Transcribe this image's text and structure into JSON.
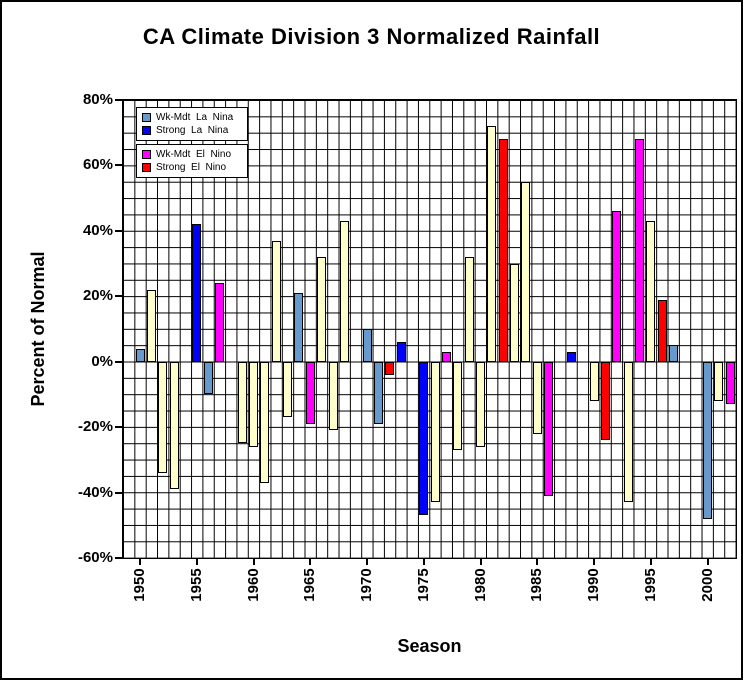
{
  "chart_data": {
    "type": "bar",
    "title": "CA Climate Division 3 Normalized Rainfall",
    "xlabel": "Season",
    "ylabel": "Percent of Normal",
    "ylim": [
      -60,
      80
    ],
    "xlim": [
      1949,
      2003
    ],
    "y_grid_step": 5,
    "x_grid_step": 1,
    "grid": true,
    "legend_position": "top-left",
    "y_ticks": [
      {
        "value": 80,
        "label": "80%"
      },
      {
        "value": 60,
        "label": "60%"
      },
      {
        "value": 40,
        "label": "40%"
      },
      {
        "value": 20,
        "label": "20%"
      },
      {
        "value": 0,
        "label": "0%"
      },
      {
        "value": -20,
        "label": "-20%"
      },
      {
        "value": -40,
        "label": "-40%"
      },
      {
        "value": -60,
        "label": "-60%"
      }
    ],
    "x_ticks": [
      {
        "value": 1950,
        "label": "1950"
      },
      {
        "value": 1955,
        "label": "1955"
      },
      {
        "value": 1960,
        "label": "1960"
      },
      {
        "value": 1965,
        "label": "1965"
      },
      {
        "value": 1970,
        "label": "1970"
      },
      {
        "value": 1975,
        "label": "1975"
      },
      {
        "value": 1980,
        "label": "1980"
      },
      {
        "value": 1985,
        "label": "1985"
      },
      {
        "value": 1990,
        "label": "1990"
      },
      {
        "value": 1995,
        "label": "1995"
      },
      {
        "value": 2000,
        "label": "2000"
      }
    ],
    "colors": {
      "neutral": "#FFFFCC",
      "wk_lanina": "#6699CC",
      "strong_lanina": "#0000FF",
      "wk_elnino": "#FF00FF",
      "strong_elnino": "#FF0000",
      "grid": "#000000",
      "bar_border": "#000000"
    },
    "legend": [
      [
        {
          "label": "Wk-Mdt  La  Nina",
          "type": "wk_lanina"
        },
        {
          "label": "Strong  La  Nina",
          "type": "strong_lanina"
        }
      ],
      [
        {
          "label": "Wk-Mdt  El  Nino",
          "type": "wk_elnino"
        },
        {
          "label": "Strong  El  Nino",
          "type": "strong_elnino"
        }
      ]
    ],
    "bars": [
      {
        "year": 1950,
        "value": 4,
        "type": "wk_lanina"
      },
      {
        "year": 1951,
        "value": 22,
        "type": "neutral"
      },
      {
        "year": 1952,
        "value": -34,
        "type": "neutral"
      },
      {
        "year": 1953,
        "value": -39,
        "type": "neutral"
      },
      {
        "year": 1955,
        "value": 42,
        "type": "strong_lanina"
      },
      {
        "year": 1956,
        "value": -10,
        "type": "wk_lanina"
      },
      {
        "year": 1957,
        "value": 24,
        "type": "wk_elnino"
      },
      {
        "year": 1959,
        "value": -25,
        "type": "neutral"
      },
      {
        "year": 1960,
        "value": -26,
        "type": "neutral"
      },
      {
        "year": 1961,
        "value": -37,
        "type": "neutral"
      },
      {
        "year": 1962,
        "value": 37,
        "type": "neutral"
      },
      {
        "year": 1963,
        "value": -17,
        "type": "neutral"
      },
      {
        "year": 1964,
        "value": 21,
        "type": "wk_lanina"
      },
      {
        "year": 1965,
        "value": -19,
        "type": "wk_elnino"
      },
      {
        "year": 1966,
        "value": 32,
        "type": "neutral"
      },
      {
        "year": 1967,
        "value": -21,
        "type": "neutral"
      },
      {
        "year": 1968,
        "value": 43,
        "type": "neutral"
      },
      {
        "year": 1970,
        "value": 10,
        "type": "wk_lanina"
      },
      {
        "year": 1971,
        "value": -19,
        "type": "wk_lanina"
      },
      {
        "year": 1972,
        "value": -4,
        "type": "strong_elnino"
      },
      {
        "year": 1973,
        "value": 6,
        "type": "strong_lanina"
      },
      {
        "year": 1975,
        "value": -47,
        "type": "strong_lanina"
      },
      {
        "year": 1976,
        "value": -43,
        "type": "neutral"
      },
      {
        "year": 1977,
        "value": 3,
        "type": "wk_elnino"
      },
      {
        "year": 1978,
        "value": -27,
        "type": "neutral"
      },
      {
        "year": 1979,
        "value": 32,
        "type": "neutral"
      },
      {
        "year": 1980,
        "value": -26,
        "type": "neutral"
      },
      {
        "year": 1981,
        "value": 72,
        "type": "neutral"
      },
      {
        "year": 1982,
        "value": 68,
        "type": "strong_elnino"
      },
      {
        "year": 1983,
        "value": 30,
        "type": "neutral"
      },
      {
        "year": 1984,
        "value": 55,
        "type": "neutral"
      },
      {
        "year": 1985,
        "value": -22,
        "type": "neutral"
      },
      {
        "year": 1986,
        "value": -41,
        "type": "wk_elnino"
      },
      {
        "year": 1988,
        "value": 3,
        "type": "strong_lanina"
      },
      {
        "year": 1990,
        "value": -12,
        "type": "neutral"
      },
      {
        "year": 1991,
        "value": -24,
        "type": "strong_elnino"
      },
      {
        "year": 1992,
        "value": 46,
        "type": "wk_elnino"
      },
      {
        "year": 1993,
        "value": -43,
        "type": "neutral"
      },
      {
        "year": 1994,
        "value": 68,
        "type": "wk_elnino"
      },
      {
        "year": 1995,
        "value": 43,
        "type": "neutral"
      },
      {
        "year": 1996,
        "value": 19,
        "type": "strong_elnino"
      },
      {
        "year": 1997,
        "value": 5,
        "type": "wk_lanina"
      },
      {
        "year": 2000,
        "value": -48,
        "type": "wk_lanina"
      },
      {
        "year": 2001,
        "value": -12,
        "type": "neutral"
      },
      {
        "year": 2002,
        "value": -13,
        "type": "wk_elnino"
      }
    ]
  }
}
